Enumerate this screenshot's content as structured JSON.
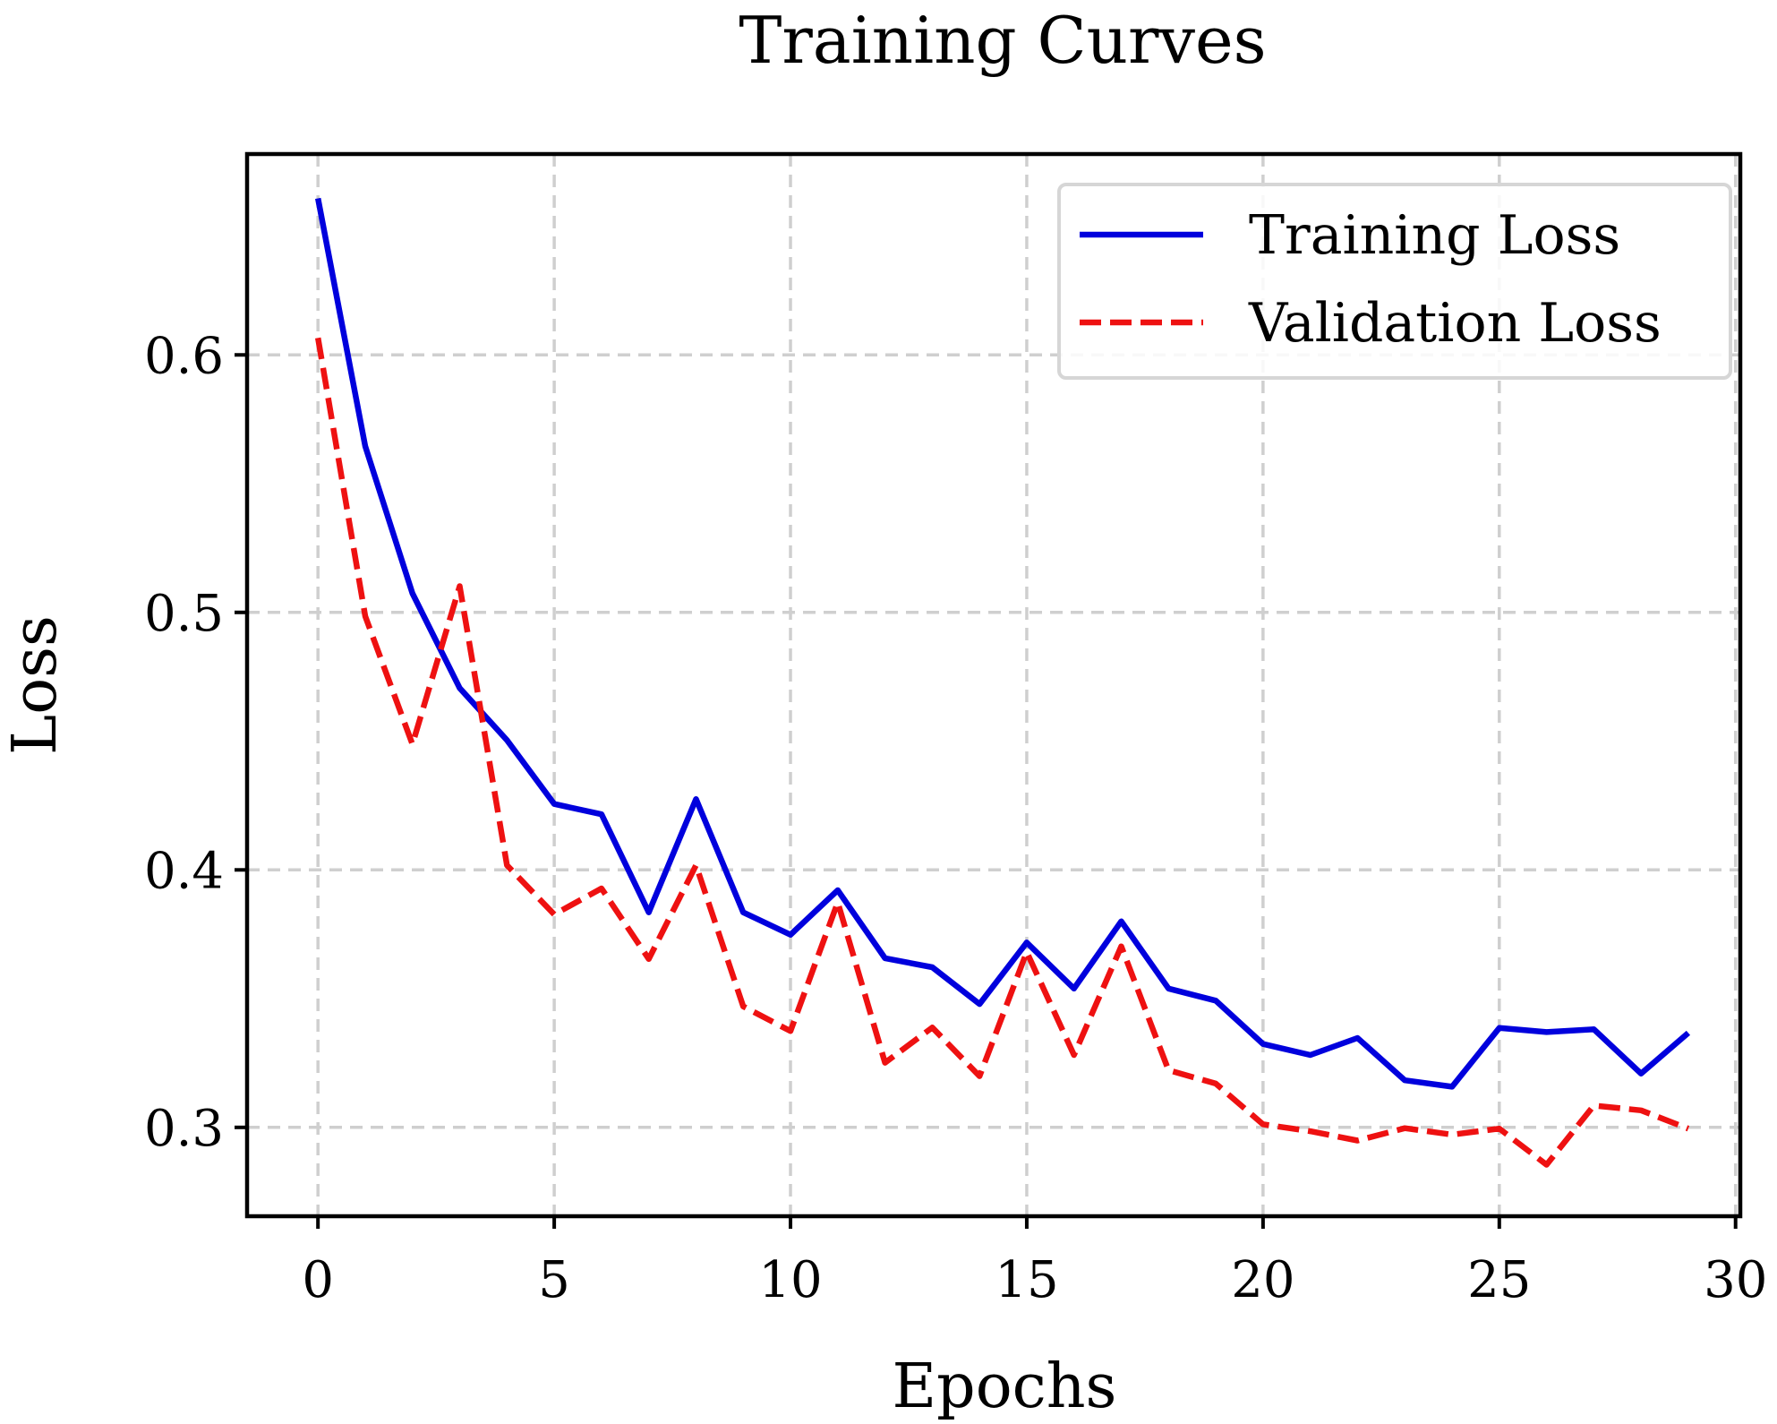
{
  "chart_data": {
    "type": "line",
    "title": "Training Curves",
    "xlabel": "Epochs",
    "ylabel": "Loss",
    "xlim": [
      -1.5,
      30.1
    ],
    "ylim": [
      0.2655,
      0.678
    ],
    "xticks": [
      0,
      5,
      10,
      15,
      20,
      25,
      30
    ],
    "yticks": [
      0.3,
      0.4,
      0.5,
      0.6
    ],
    "xtick_labels": [
      "0",
      "5",
      "10",
      "15",
      "20",
      "25",
      "30"
    ],
    "ytick_labels": [
      "0.3",
      "0.4",
      "0.5",
      "0.6"
    ],
    "grid": true,
    "legend_position": "top-right",
    "x": [
      0,
      1,
      2,
      3,
      4,
      5,
      6,
      7,
      8,
      9,
      10,
      11,
      12,
      13,
      14,
      15,
      16,
      17,
      18,
      19,
      20,
      21,
      22,
      23,
      24,
      25,
      26,
      27,
      28,
      29
    ],
    "series": [
      {
        "name": "Training Loss",
        "color": "#0000dd",
        "style": "solid",
        "values": [
          0.6608,
          0.5645,
          0.5074,
          0.4706,
          0.4504,
          0.4256,
          0.4216,
          0.3835,
          0.4275,
          0.3835,
          0.3748,
          0.3921,
          0.3657,
          0.3622,
          0.3479,
          0.3718,
          0.3539,
          0.38,
          0.3539,
          0.3492,
          0.3324,
          0.3281,
          0.3347,
          0.3183,
          0.3158,
          0.3386,
          0.337,
          0.3381,
          0.3209,
          0.3367
        ]
      },
      {
        "name": "Validation Loss",
        "color": "#ee1111",
        "style": "dashed",
        "values": [
          0.6066,
          0.4985,
          0.4488,
          0.5102,
          0.4018,
          0.3827,
          0.3928,
          0.3654,
          0.4018,
          0.347,
          0.3374,
          0.3874,
          0.3251,
          0.3388,
          0.3199,
          0.3681,
          0.3281,
          0.3703,
          0.3222,
          0.317,
          0.3012,
          0.2985,
          0.2949,
          0.2997,
          0.2972,
          0.2995,
          0.2855,
          0.3085,
          0.3066,
          0.2995
        ]
      }
    ]
  }
}
